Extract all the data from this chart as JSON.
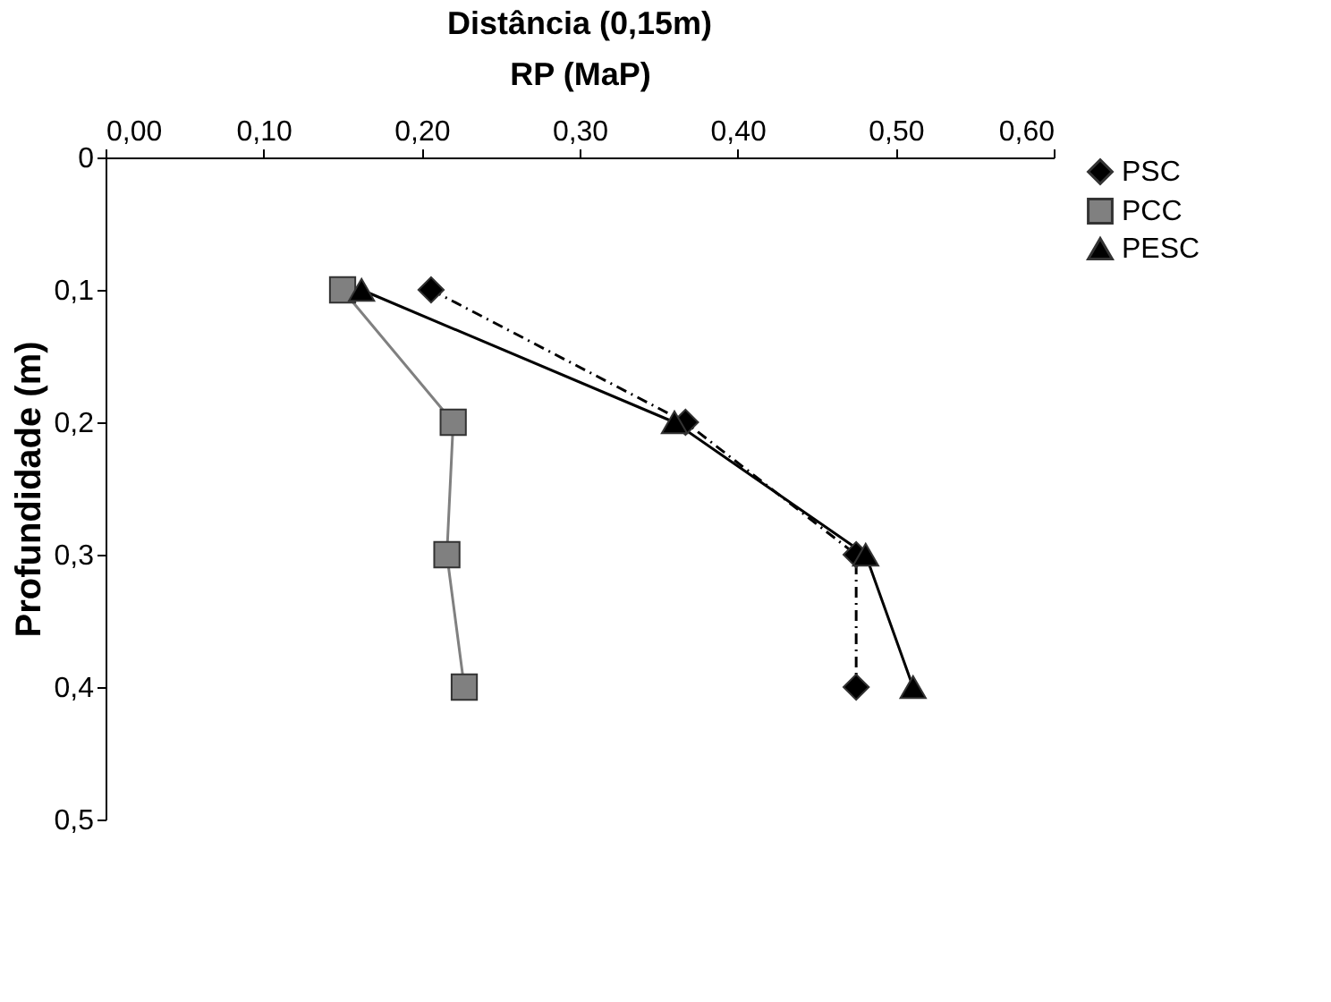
{
  "chart_data": {
    "type": "line",
    "title": "Distância (0,15m)",
    "xlabel": "RP (MaP)",
    "ylabel": "Profundidade (m)",
    "xlim": [
      0,
      0.6
    ],
    "xticks": [
      {
        "value": 0,
        "label": "0,00"
      },
      {
        "value": 0.1,
        "label": "0,10"
      },
      {
        "value": 0.2,
        "label": "0,20"
      },
      {
        "value": 0.3,
        "label": "0,30"
      },
      {
        "value": 0.4,
        "label": "0,40"
      },
      {
        "value": 0.5,
        "label": "0,50"
      },
      {
        "value": 0.6,
        "label": "0,60"
      }
    ],
    "ylim": [
      0.5,
      0
    ],
    "yticks": [
      0,
      {
        "value": 0.1,
        "label": "0,1"
      },
      {
        "value": 0.2,
        "label": "0,2"
      },
      {
        "value": 0.3,
        "label": "0,3"
      },
      {
        "value": 0.4,
        "label": "0,4"
      },
      {
        "value": 0.5,
        "label": "0,5"
      }
    ],
    "grid": false,
    "legend": "right",
    "series": [
      {
        "name": "PSC",
        "color": "#000000",
        "marker": "diamond",
        "line_style": "dashed",
        "x": [
          0.206,
          0.367,
          0.475,
          0.475
        ],
        "values": [
          0.1,
          0.2,
          0.3,
          0.4
        ]
      },
      {
        "name": "PCC",
        "color": "#808080",
        "marker": "square",
        "line_style": "solid",
        "x": [
          0.15,
          0.22,
          0.216,
          0.227
        ],
        "values": [
          0.1,
          0.2,
          0.3,
          0.4
        ]
      },
      {
        "name": "PESC",
        "color": "#000000",
        "marker": "triangle",
        "line_style": "solid",
        "x": [
          0.162,
          0.36,
          0.481,
          0.511
        ],
        "values": [
          0.1,
          0.2,
          0.3,
          0.4
        ]
      }
    ]
  }
}
